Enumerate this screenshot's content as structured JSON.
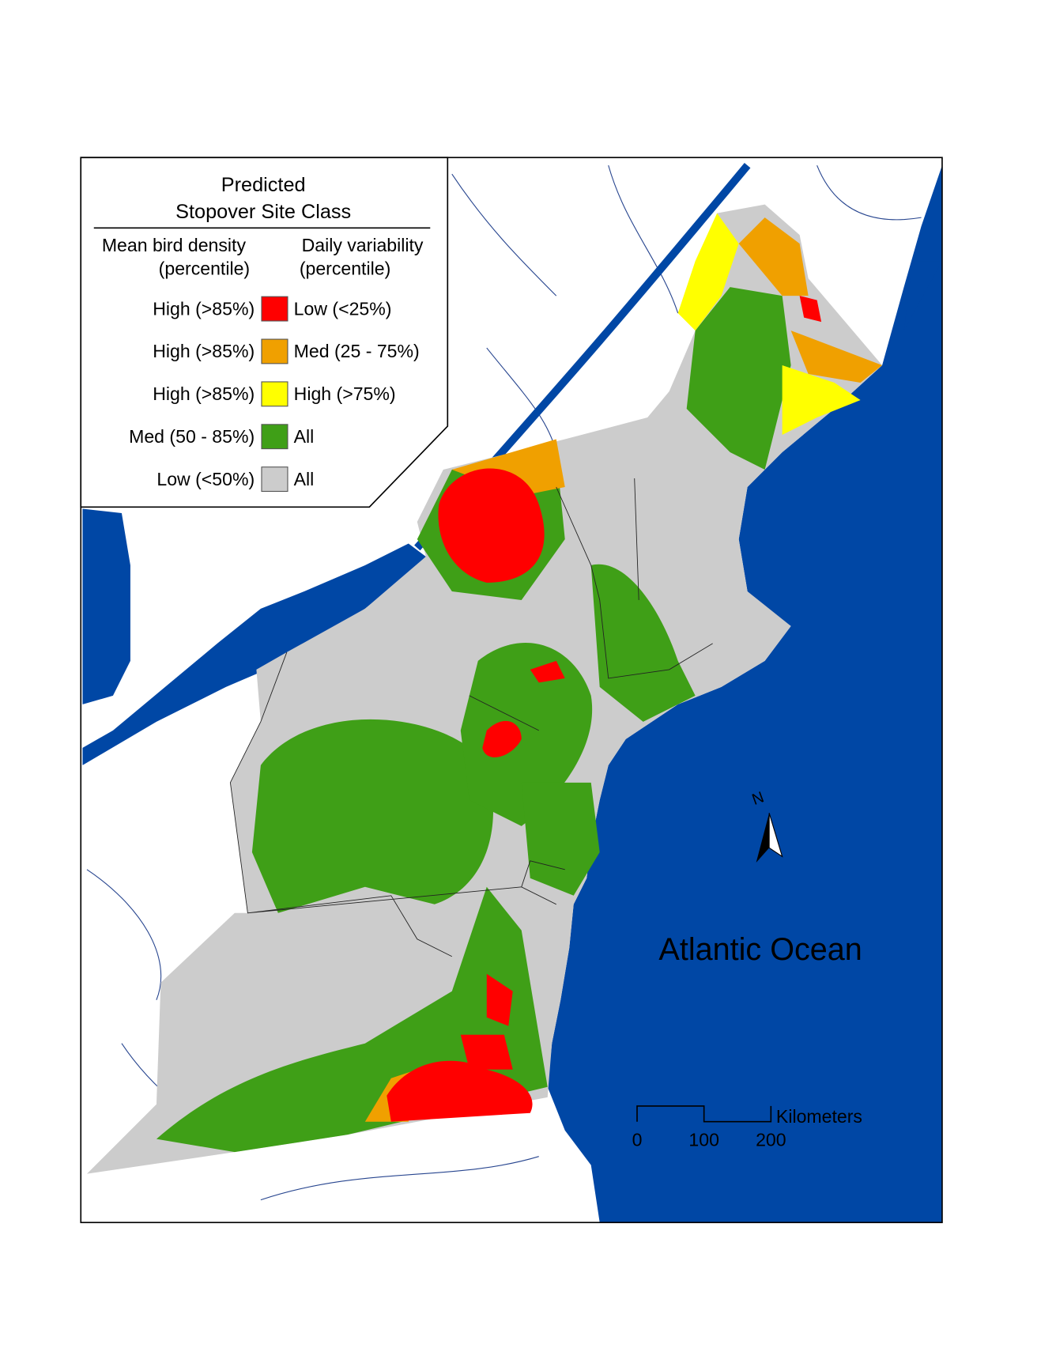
{
  "legend": {
    "title": "Predicted",
    "subtitle": "Stopover Site Class",
    "column_headers": [
      {
        "line1": "Mean bird density",
        "line2": "(percentile)"
      },
      {
        "line1": "Daily variability",
        "line2": "(percentile)"
      }
    ],
    "rows": [
      {
        "density": "High (>85%)",
        "color": "#ff0000",
        "variability": "Low (<25%)"
      },
      {
        "density": "High (>85%)",
        "color": "#f0a000",
        "variability": "Med (25 - 75%)"
      },
      {
        "density": "High (>85%)",
        "color": "#ffff00",
        "variability": "High (>75%)"
      },
      {
        "density": "Med (50 - 85%)",
        "color": "#3f9f17",
        "variability": "All"
      },
      {
        "density": "Low (<50%)",
        "color": "#cccccc",
        "variability": "All"
      }
    ]
  },
  "map": {
    "ocean_label": "Atlantic Ocean",
    "north_label": "N",
    "scale_bar": {
      "unit": "Kilometers",
      "ticks": [
        "0",
        "100",
        "200"
      ]
    }
  }
}
